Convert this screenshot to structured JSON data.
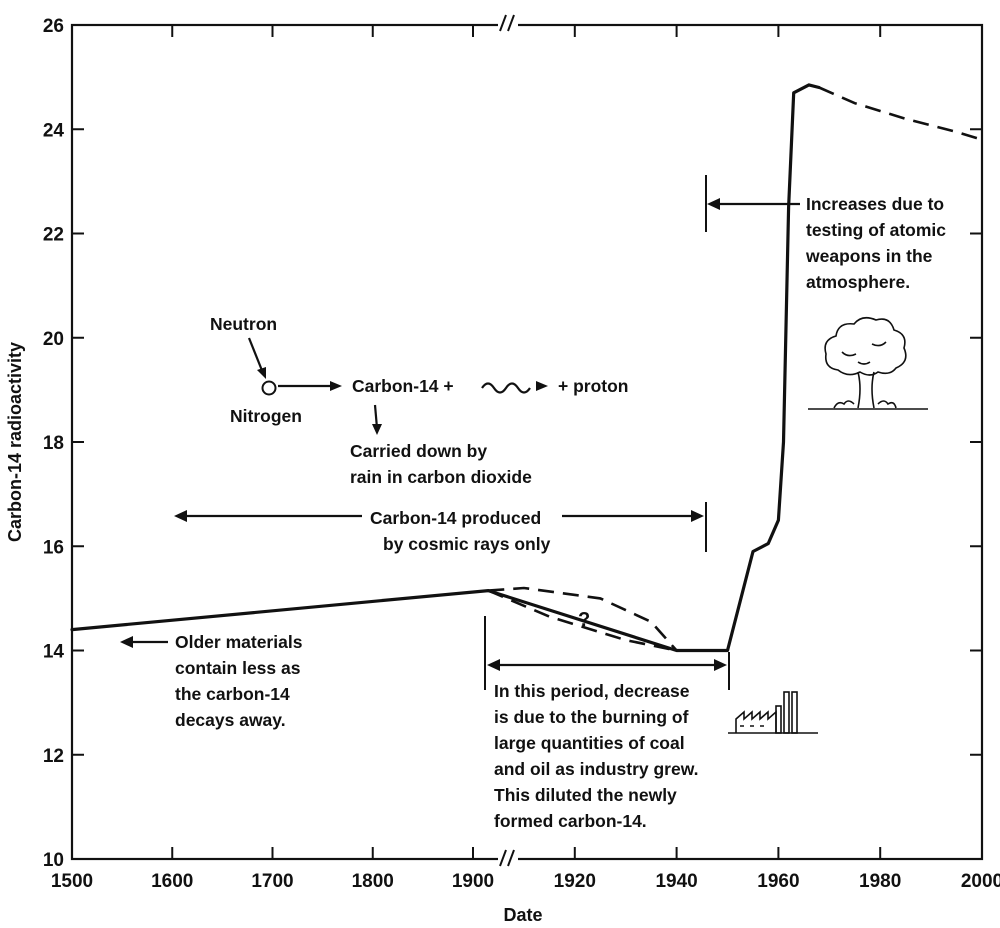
{
  "chart_data": {
    "type": "line",
    "title": "",
    "xlabel": "Date",
    "ylabel": "Carbon-14 radioactivity",
    "xlim": [
      1500,
      2000
    ],
    "ylim": [
      10,
      26
    ],
    "axis_break": "1900 (scale changes after break)",
    "x_tick_labels": [
      "1500",
      "1600",
      "1700",
      "1800",
      "1900",
      "1920",
      "1940",
      "1960",
      "1980",
      "2000"
    ],
    "y_tick_labels": [
      "10",
      "12",
      "14",
      "16",
      "18",
      "20",
      "22",
      "24",
      "26"
    ],
    "series": [
      {
        "style": "solid",
        "x": [
          1500,
          1903,
          1940,
          1950,
          1955,
          1958,
          1960,
          1961,
          1962,
          1963,
          1966,
          1968
        ],
        "values": [
          14.4,
          15.15,
          14.0,
          14.0,
          15.9,
          16.05,
          16.5,
          18.0,
          22.5,
          24.7,
          24.85,
          24.8
        ]
      },
      {
        "style": "dashed",
        "x": [
          1968,
          1975,
          1985,
          1995,
          2000
        ],
        "values": [
          24.8,
          24.5,
          24.2,
          23.95,
          23.8
        ]
      },
      {
        "style": "dashed",
        "x": [
          1903,
          1910,
          1925,
          1935,
          1940
        ],
        "values": [
          15.15,
          15.2,
          15.0,
          14.55,
          14.0
        ]
      },
      {
        "style": "dashed",
        "x": [
          1903,
          1915,
          1930,
          1940
        ],
        "values": [
          15.15,
          14.65,
          14.2,
          14.0
        ]
      }
    ],
    "annotations": {
      "neutron": "Neutron",
      "nitrogen": "Nitrogen",
      "reaction_carbon": "Carbon-14 +",
      "reaction_proton": "+ proton",
      "carried_1": "Carried down by",
      "carried_2": "rain in carbon dioxide",
      "cosmic_1": "Carbon-14 produced",
      "cosmic_2": "by cosmic rays only",
      "older_1": "Older materials",
      "older_2": "contain less as",
      "older_3": "the carbon-14",
      "older_4": "decays away.",
      "question": "?",
      "period_1": "In this period, decrease",
      "period_2": "is due to the burning of",
      "period_3": "large quantities of coal",
      "period_4": "and oil as industry grew.",
      "period_5": "This diluted the newly",
      "period_6": "formed carbon-14.",
      "tests_1": "Increases due to",
      "tests_2": "testing of atomic",
      "tests_3": "weapons in the",
      "tests_4": "atmosphere."
    },
    "icons": [
      "mushroom-cloud-icon",
      "factory-icon"
    ],
    "grid": false
  }
}
